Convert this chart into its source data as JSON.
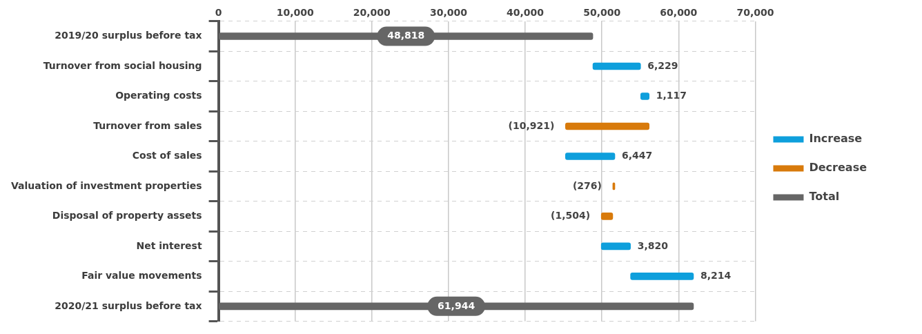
{
  "chart_data": {
    "type": "bar",
    "orientation": "horizontal",
    "categories": [
      "2019/20 surplus before tax",
      "Turnover from social housing",
      "Operating costs",
      "Turnover from sales",
      "Cost of sales",
      "Valuation of investment properties",
      "Disposal of property assets",
      "Net interest",
      "Fair value movements",
      "2020/21 surplus before tax"
    ],
    "series": [
      {
        "name": "Increase",
        "color": "#0e9fdc",
        "base": [
          null,
          48818,
          55047,
          null,
          45243,
          null,
          null,
          49910,
          53730,
          null
        ],
        "values": [
          null,
          6229,
          1117,
          null,
          6447,
          null,
          null,
          3820,
          8214,
          null
        ],
        "value_labels": [
          null,
          "6,229",
          "1,117",
          null,
          "6,447",
          null,
          null,
          "3,820",
          "8,214",
          null
        ]
      },
      {
        "name": "Decrease",
        "color": "#d87a0b",
        "base": [
          null,
          null,
          null,
          56164,
          null,
          51690,
          51414,
          null,
          null,
          null
        ],
        "values": [
          null,
          null,
          null,
          -10921,
          null,
          -276,
          -1504,
          null,
          null,
          null
        ],
        "value_labels": [
          null,
          null,
          null,
          "(10,921)",
          null,
          "(276)",
          "(1,504)",
          null,
          null,
          null
        ]
      },
      {
        "name": "Total",
        "color": "#666666",
        "base": [
          0,
          null,
          null,
          null,
          null,
          null,
          null,
          null,
          null,
          0
        ],
        "values": [
          48818,
          null,
          null,
          null,
          null,
          null,
          null,
          null,
          null,
          61944
        ],
        "value_labels": [
          "48,818",
          null,
          null,
          null,
          null,
          null,
          null,
          null,
          null,
          "61,944"
        ]
      }
    ],
    "xlim": [
      0,
      70000
    ],
    "xticks": [
      0,
      {
        "value": 10000,
        "label": "10,000"
      },
      {
        "value": 20000,
        "label": "20,000"
      },
      {
        "value": 30000,
        "label": "30,000"
      },
      {
        "value": 40000,
        "label": "40,000"
      },
      {
        "value": 50000,
        "label": "50,000"
      },
      {
        "value": 60000,
        "label": "60,000"
      },
      {
        "value": 70000,
        "label": "70,000"
      }
    ],
    "grid": true,
    "legend": "right"
  }
}
